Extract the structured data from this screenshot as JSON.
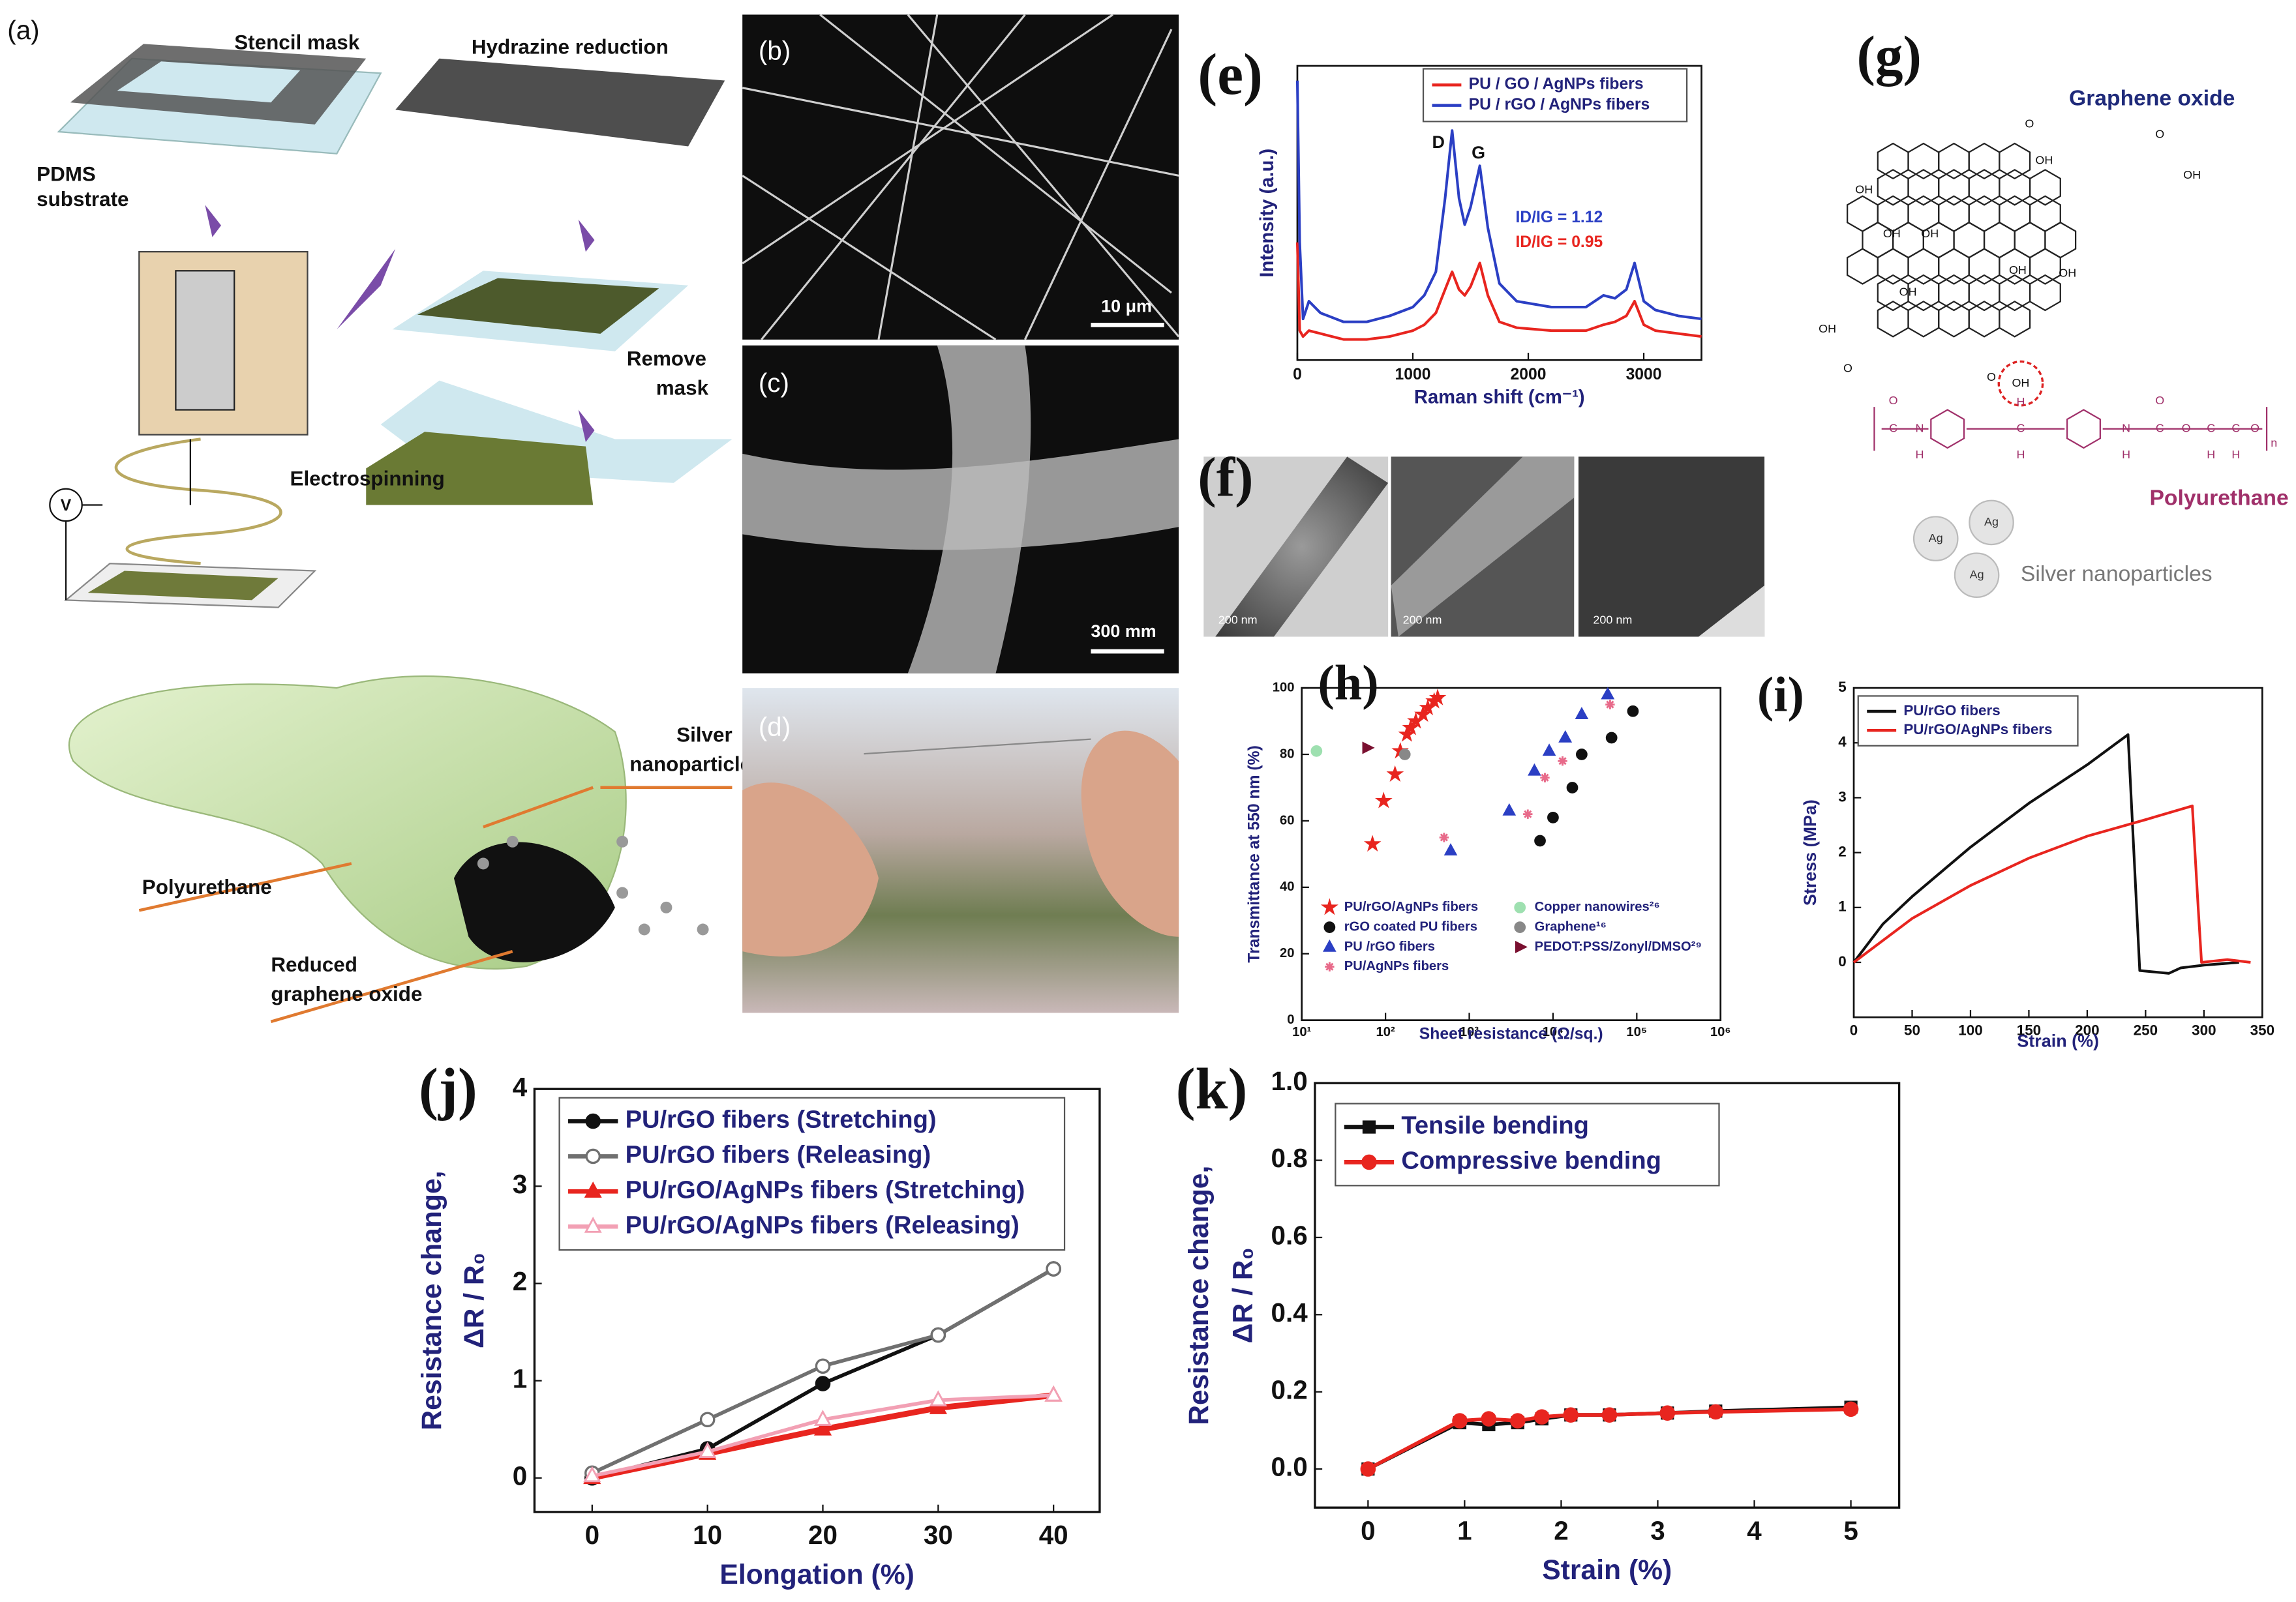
{
  "illustration": {
    "panel": "(a)",
    "texts": [
      "Stencil mask",
      "PDMS",
      "substrate",
      "Hydrazine reduction",
      "Remove",
      "mask",
      "Electrospinning",
      "V",
      "Silver",
      "nanoparticles",
      "Polyurethane",
      "Reduced",
      "graphene oxide"
    ]
  },
  "micrographs": [
    {
      "panel": "(b)",
      "scale": "10 μm"
    },
    {
      "panel": "(c)",
      "scale": "300 mm"
    }
  ],
  "photo": {
    "panel": "(d)"
  },
  "tem": {
    "panel": "(f)",
    "scales": [
      "200 nm",
      "200 nm",
      "200 nm"
    ]
  },
  "structure": {
    "panel": "(g)",
    "graphene_oxide": "Graphene oxide",
    "polyurethane": "Polyurethane",
    "silver": "Silver nanoparticles",
    "ag": [
      "Ag",
      "Ag",
      "Ag"
    ],
    "go_groups": [
      "OH",
      "OH",
      "OH",
      "OH",
      "OH",
      "OH",
      "O",
      "OH",
      "O",
      "OH",
      "OH",
      "O",
      "O",
      "OH"
    ],
    "pu_atoms": [
      "O",
      "C",
      "N",
      "H",
      "C",
      "N",
      "H",
      "C",
      "O",
      "O",
      "C",
      "C",
      "O",
      "H",
      "H",
      "H",
      "H",
      "n"
    ]
  },
  "chart_data": [
    {
      "type": "line",
      "panel": "(e)",
      "xlabel": "Raman shift (cm⁻¹)",
      "ylabel": "Intensity (a.u.)",
      "x": [
        0,
        20,
        50,
        100,
        200,
        400,
        600,
        800,
        1000,
        1100,
        1200,
        1280,
        1340,
        1400,
        1450,
        1500,
        1580,
        1650,
        1750,
        1900,
        2200,
        2500,
        2650,
        2750,
        2850,
        2920,
        3000,
        3100,
        3300,
        3500
      ],
      "series": [
        {
          "name": "PU / GO / AgNPs fibers",
          "color": "#e8251f",
          "values": [
            40,
            10,
            8,
            10,
            9,
            7,
            7,
            8,
            10,
            12,
            16,
            24,
            30,
            24,
            22,
            25,
            33,
            22,
            13,
            11,
            10,
            10,
            12,
            13,
            15,
            20,
            12,
            10,
            9,
            8
          ]
        },
        {
          "name": "PU / rGO / AgNPs fibers",
          "color": "#2b3fc4",
          "values": [
            95,
            40,
            14,
            20,
            16,
            13,
            13,
            15,
            18,
            22,
            30,
            55,
            78,
            55,
            46,
            52,
            66,
            45,
            26,
            20,
            18,
            18,
            22,
            21,
            24,
            33,
            20,
            17,
            15,
            14
          ]
        }
      ],
      "xlim": [
        0,
        3500
      ],
      "xticks": [
        0,
        1000,
        2000,
        3000
      ],
      "ylim": [
        0,
        100
      ],
      "legend": "upper right",
      "annotations": [
        {
          "text": "D",
          "color": "#111"
        },
        {
          "text": "G",
          "color": "#111"
        },
        {
          "text": "ID/IG = 1.12",
          "color": "#2b3fc4"
        },
        {
          "text": "ID/IG = 0.95",
          "color": "#e8251f"
        }
      ]
    },
    {
      "type": "scatter",
      "panel": "(h)",
      "xlabel": "Sheet resistance (Ω/sq.)",
      "ylabel": "Transmittance at 550 nm (%)",
      "xscale": "log",
      "series": [
        {
          "name": "PU/rGO/AgNPs fibers",
          "color": "#e8251f",
          "marker": "star",
          "x": [
            70,
            95,
            130,
            150,
            180,
            200,
            230,
            280,
            320,
            380,
            420
          ],
          "values": [
            53,
            66,
            74,
            81,
            86,
            88,
            90,
            92,
            94,
            96,
            97
          ]
        },
        {
          "name": "rGO coated PU fibers",
          "color": "#111111",
          "marker": "circle",
          "x": [
            7000,
            10000,
            17000,
            22000,
            50000,
            90000
          ],
          "values": [
            54,
            61,
            70,
            80,
            85,
            93
          ]
        },
        {
          "name": "PU /rGO fibers",
          "color": "#2b3fc4",
          "marker": "triangle",
          "x": [
            600,
            3000,
            6000,
            9000,
            14000,
            22000,
            45000
          ],
          "values": [
            51,
            63,
            75,
            81,
            85,
            92,
            98
          ]
        },
        {
          "name": "PU/AgNPs fibers",
          "color": "#e86a8a",
          "marker": "asterisk",
          "x": [
            500,
            5000,
            8000,
            13000,
            48000
          ],
          "values": [
            55,
            62,
            73,
            78,
            95
          ]
        },
        {
          "name": "Copper nanowires²⁶",
          "color": "#9ee0b0",
          "marker": "circle",
          "x": [
            15
          ],
          "values": [
            81
          ]
        },
        {
          "name": "Graphene¹⁶",
          "color": "#888888",
          "marker": "circle",
          "x": [
            170
          ],
          "values": [
            80
          ]
        },
        {
          "name": "PEDOT:PSS/Zonyl/DMSO²⁹",
          "color": "#7a1030",
          "marker": "triangle-right",
          "x": [
            60
          ],
          "values": [
            82
          ]
        }
      ],
      "xlim": [
        10,
        1000000
      ],
      "xticks": [
        {
          "value": 10,
          "label": "10¹"
        },
        {
          "value": 100,
          "label": "10²"
        },
        {
          "value": 1000,
          "label": "10³"
        },
        {
          "value": 10000,
          "label": "10⁴"
        },
        {
          "value": 100000,
          "label": "10⁵"
        },
        {
          "value": 1000000,
          "label": "10⁶"
        }
      ],
      "ylim": [
        0,
        100
      ],
      "yticks": [
        0,
        20,
        40,
        60,
        80,
        100
      ],
      "legend": "lower left"
    },
    {
      "type": "line",
      "panel": "(i)",
      "xlabel": "Strain (%)",
      "ylabel": "Stress (MPa)",
      "series": [
        {
          "name": "PU/rGO fibers",
          "color": "#111111",
          "x": [
            0,
            25,
            50,
            100,
            150,
            200,
            235,
            240,
            245,
            270,
            280,
            300,
            330
          ],
          "values": [
            0,
            0.7,
            1.2,
            2.1,
            2.9,
            3.6,
            4.15,
            2,
            -0.15,
            -0.2,
            -0.1,
            -0.05,
            0
          ]
        },
        {
          "name": "PU/rGO/AgNPs fibers",
          "color": "#e8251f",
          "x": [
            0,
            50,
            100,
            150,
            200,
            250,
            290,
            295,
            298,
            320,
            340
          ],
          "values": [
            0,
            0.8,
            1.4,
            1.9,
            2.3,
            2.6,
            2.85,
            1,
            0,
            0.05,
            0
          ]
        }
      ],
      "xlim": [
        0,
        350
      ],
      "xticks": [
        0,
        50,
        100,
        150,
        200,
        250,
        300,
        350
      ],
      "ylim": [
        -1,
        5
      ],
      "yticks": [
        0,
        1,
        2,
        3,
        4,
        5
      ],
      "legend": "upper left"
    },
    {
      "type": "line",
      "panel": "(j)",
      "xlabel": "Elongation (%)",
      "ylabel": [
        "Resistance change,",
        "ΔR / R₀"
      ],
      "x": [
        0,
        10,
        20,
        30,
        40
      ],
      "series": [
        {
          "name": "PU/rGO fibers (Stretching)",
          "color": "#111111",
          "marker": "circle",
          "values": [
            0,
            0.3,
            0.97,
            1.47,
            2.15
          ]
        },
        {
          "name": "PU/rGO fibers (Releasing)",
          "color": "#707070",
          "marker": "circle-open",
          "values": [
            0.05,
            0.6,
            1.15,
            1.47,
            2.15
          ]
        },
        {
          "name": "PU/rGO/AgNPs fibers (Stretching)",
          "color": "#e8251f",
          "marker": "triangle",
          "values": [
            0,
            0.25,
            0.5,
            0.72,
            0.85
          ]
        },
        {
          "name": "PU/rGO/AgNPs fibers (Releasing)",
          "color": "#f2a0b4",
          "marker": "triangle-open",
          "values": [
            0.02,
            0.27,
            0.6,
            0.8,
            0.85
          ]
        }
      ],
      "xlim": [
        -5,
        44
      ],
      "xticks": [
        0,
        10,
        20,
        30,
        40
      ],
      "ylim": [
        -0.35,
        4
      ],
      "yticks": [
        0,
        1,
        2,
        3,
        4
      ],
      "legend": "upper left"
    },
    {
      "type": "line",
      "panel": "(k)",
      "xlabel": "Strain (%)",
      "ylabel": [
        "Resistance change,",
        "ΔR / R₀"
      ],
      "x": [
        0,
        0.95,
        1.25,
        1.55,
        1.8,
        2.1,
        2.5,
        3.1,
        3.6,
        5
      ],
      "series": [
        {
          "name": "Tensile bending",
          "color": "#111111",
          "marker": "square",
          "values": [
            0,
            0.12,
            0.115,
            0.12,
            0.13,
            0.14,
            0.14,
            0.145,
            0.15,
            0.16
          ]
        },
        {
          "name": "Compressive bending",
          "color": "#e8251f",
          "marker": "circle",
          "values": [
            0,
            0.125,
            0.13,
            0.125,
            0.135,
            0.14,
            0.14,
            0.145,
            0.148,
            0.155
          ]
        }
      ],
      "xlim": [
        -0.55,
        5.5
      ],
      "xticks": [
        0,
        1,
        2,
        3,
        4,
        5
      ],
      "ylim": [
        -0.1,
        1.0
      ],
      "yticks": [
        {
          "value": 0,
          "label": "0.0"
        },
        {
          "value": 0.2,
          "label": "0.2"
        },
        {
          "value": 0.4,
          "label": "0.4"
        },
        {
          "value": 0.6,
          "label": "0.6"
        },
        {
          "value": 0.8,
          "label": "0.8"
        },
        {
          "value": 1.0,
          "label": "1.0"
        }
      ],
      "legend": "upper left"
    }
  ]
}
